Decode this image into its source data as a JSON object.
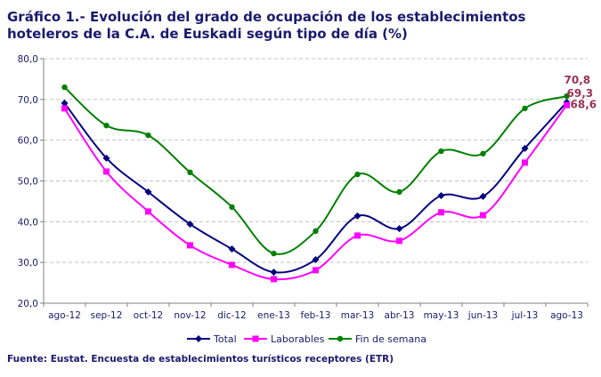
{
  "chart_data": {
    "type": "line",
    "title": "Gráfico 1.-  Evolución del grado de ocupación de los establecimientos hoteleros de la C.A. de Euskadi según tipo de día (%)",
    "source": "Fuente: Eustat. Encuesta de establecimientos turísticos receptores (ETR)",
    "categories": [
      "ago-12",
      "sep-12",
      "oct-12",
      "nov-12",
      "dic-12",
      "ene-13",
      "feb-13",
      "mar-13",
      "abr-13",
      "may-13",
      "jun-13",
      "jul-13",
      "ago-13"
    ],
    "ylim": [
      20,
      80
    ],
    "yticks": [
      "20,0",
      "30,0",
      "40,0",
      "50,0",
      "60,0",
      "70,0",
      "80,0"
    ],
    "grid": true,
    "legend": "bottom",
    "series": [
      {
        "name": "Total",
        "color": "#000080",
        "marker": "diamond",
        "values": [
          69.1,
          55.6,
          47.3,
          39.4,
          33.3,
          27.6,
          30.7,
          41.4,
          38.3,
          46.4,
          46.2,
          58.0,
          69.3
        ]
      },
      {
        "name": "Laborables",
        "color": "#ff00ff",
        "marker": "square",
        "values": [
          67.8,
          52.3,
          42.5,
          34.2,
          29.4,
          25.9,
          28.1,
          36.6,
          35.3,
          42.3,
          41.6,
          54.5,
          68.6
        ]
      },
      {
        "name": "Fin de semana",
        "color": "#008000",
        "marker": "circle",
        "values": [
          73.0,
          63.6,
          61.2,
          52.1,
          43.6,
          32.2,
          37.7,
          51.6,
          47.3,
          57.3,
          56.7,
          67.8,
          70.8
        ]
      }
    ],
    "data_labels": [
      {
        "series": "Fin de semana",
        "text": "70,8"
      },
      {
        "series": "Total",
        "text": "69,3"
      },
      {
        "series": "Laborables",
        "text": "68,6"
      }
    ]
  }
}
